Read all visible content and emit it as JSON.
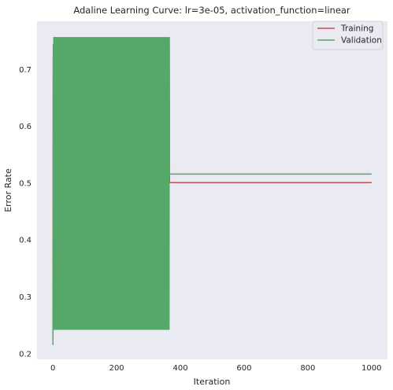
{
  "chart_data": {
    "type": "line",
    "title": "Adaline Learning Curve: lr=3e-05, activation_function=linear",
    "xlabel": "Iteration",
    "ylabel": "Error Rate",
    "xlim": [
      -50,
      1050
    ],
    "ylim": [
      0.19,
      0.785
    ],
    "xticks": [
      0,
      200,
      400,
      600,
      800,
      1000
    ],
    "yticks": [
      0.2,
      0.3,
      0.4,
      0.5,
      0.6,
      0.7
    ],
    "xtick_labels": [
      "0",
      "200",
      "400",
      "600",
      "800",
      "1000"
    ],
    "ytick_labels": [
      "0.2",
      "0.3",
      "0.4",
      "0.5",
      "0.6",
      "0.7"
    ],
    "grid": false,
    "legend_position": "top-right",
    "oscillation": {
      "start": 0,
      "end": 365,
      "low": 0.242,
      "high": 0.757
    },
    "series": [
      {
        "name": "Training",
        "color": "#c44e52",
        "x": [
          0,
          1,
          2,
          365,
          366,
          1000
        ],
        "y": [
          0.25,
          0.72,
          0.242,
          0.757,
          0.501,
          0.501
        ]
      },
      {
        "name": "Validation",
        "color": "#55a868",
        "x": [
          0,
          1,
          2,
          3,
          365,
          366,
          1000
        ],
        "y": [
          0.215,
          0.745,
          0.242,
          0.757,
          0.65,
          0.516,
          0.516
        ]
      }
    ]
  }
}
